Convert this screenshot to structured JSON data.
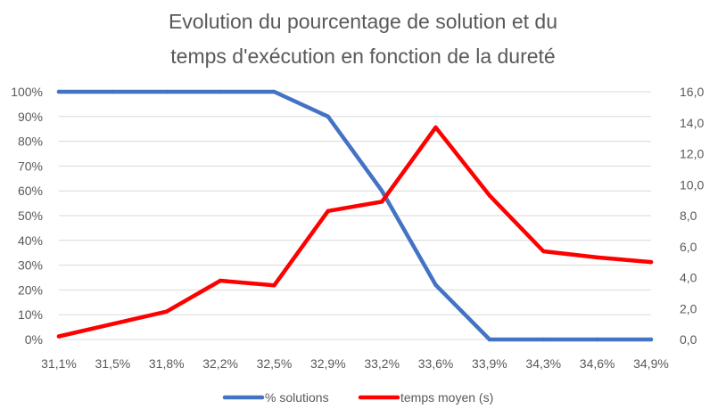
{
  "chart_data": {
    "type": "line",
    "title": "Evolution du pourcentage de solution et du temps d'exécution en fonction de la dureté",
    "title_lines": [
      "Evolution du pourcentage de solution et du",
      "temps d'exécution en fonction de la dureté"
    ],
    "categories": [
      "31,1%",
      "31,5%",
      "31,8%",
      "32,2%",
      "32,5%",
      "32,9%",
      "33,2%",
      "33,6%",
      "33,9%",
      "34,3%",
      "34,6%",
      "34,9%"
    ],
    "y_left": {
      "range": [
        0,
        100
      ],
      "unit": "%",
      "ticks": [
        "0%",
        "10%",
        "20%",
        "30%",
        "40%",
        "50%",
        "60%",
        "70%",
        "80%",
        "90%",
        "100%"
      ]
    },
    "y_right": {
      "range": [
        0,
        16
      ],
      "ticks": [
        "0,0",
        "2,0",
        "4,0",
        "6,0",
        "8,0",
        "10,0",
        "12,0",
        "14,0",
        "16,0"
      ]
    },
    "grid": true,
    "legend_position": "bottom",
    "series": [
      {
        "name": "% solutions",
        "axis": "left",
        "color": "#4472c4",
        "values": [
          100,
          100,
          100,
          100,
          100,
          90,
          60,
          22,
          0,
          0,
          0,
          0
        ]
      },
      {
        "name": "temps moyen (s)",
        "axis": "right",
        "color": "#ff0000",
        "values": [
          0.2,
          1.0,
          1.8,
          3.8,
          3.5,
          8.3,
          8.9,
          13.7,
          9.3,
          5.7,
          5.3,
          5.0
        ]
      }
    ]
  }
}
